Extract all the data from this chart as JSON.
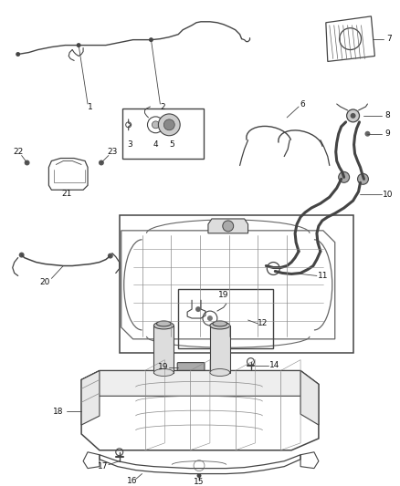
{
  "bg_color": "#ffffff",
  "fig_width": 4.38,
  "fig_height": 5.33,
  "dpi": 100,
  "lc": "#444444",
  "lc2": "#666666",
  "lc3": "#888888",
  "label_fs": 6.5,
  "label_color": "#111111"
}
